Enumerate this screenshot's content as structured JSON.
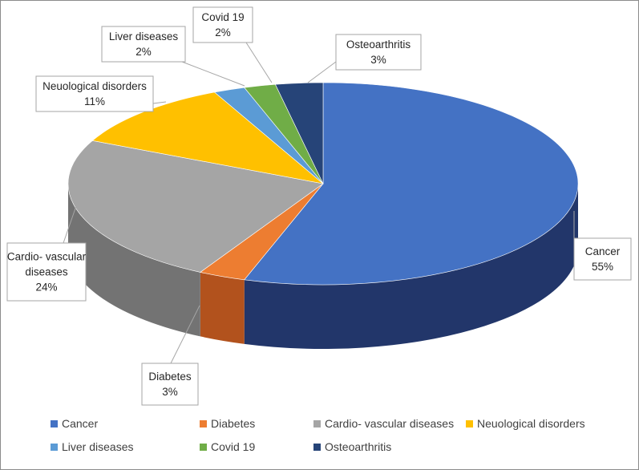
{
  "chart_data": {
    "type": "pie",
    "title": "",
    "categories": [
      "Cancer",
      "Diabetes",
      "Cardio- vascular diseases",
      "Neuological disorders",
      "Liver diseases",
      "Covid 19",
      "Osteoarthritis"
    ],
    "values": [
      55,
      3,
      24,
      11,
      2,
      2,
      3
    ],
    "value_labels": [
      "55%",
      "3%",
      "24%",
      "11%",
      "2%",
      "2%",
      "3%"
    ],
    "callout_names": [
      [
        "Cancer"
      ],
      [
        "Diabetes"
      ],
      [
        "Cardio- vascular",
        "diseases"
      ],
      [
        "Neuological disorders"
      ],
      [
        "Liver diseases"
      ],
      [
        "Covid 19"
      ],
      [
        "Osteoarthritis"
      ]
    ],
    "colors": [
      "#4472C4",
      "#ED7D31",
      "#A5A5A5",
      "#FFC000",
      "#5B9BD5",
      "#70AD47",
      "#264478"
    ],
    "side_colors": [
      "#22366a",
      "#b2521d",
      "#737373",
      "#b88a00",
      "#35709f",
      "#4a7a2d",
      "#15264a"
    ],
    "style": "3d-pie",
    "legend_position": "bottom"
  }
}
